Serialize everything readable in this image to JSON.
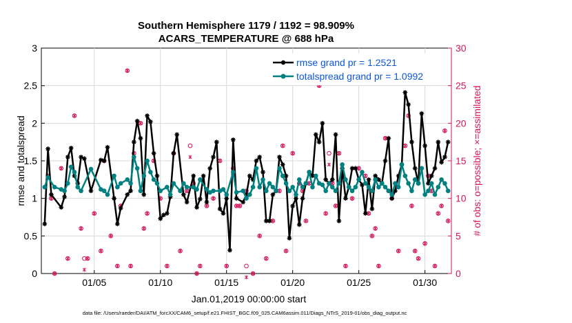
{
  "chart_data": {
    "type": "line",
    "title": [
      "Southern Hemisphere 1179 / 1192 = 98.909%",
      "ACARS_TEMPERATURE @ 688 hPa"
    ],
    "xlabel": "Jan.01,2019 00:00:00 start",
    "ylabel_left": "rmse and totalspread",
    "ylabel_right": "# of obs: o=possible; ×=assimilated",
    "footer": "data file: /Users/raeder/DAI/ATM_forcXX/CAM6_setup/f.e21.FHIST_BGC.f09_025.CAM6assim.011/Diags_NTrS_2019-01/obs_diag_output.nc",
    "xlim": [
      1,
      32
    ],
    "ylim_left": [
      0,
      3
    ],
    "ylim_right": [
      0,
      30
    ],
    "xticks": [
      5,
      10,
      15,
      20,
      25,
      30
    ],
    "xtick_labels": [
      "01/05",
      "01/10",
      "01/15",
      "01/20",
      "01/25",
      "01/30"
    ],
    "yticks_left": [
      0,
      0.5,
      1,
      1.5,
      2,
      2.5,
      3
    ],
    "ytick_labels_left": [
      "0",
      "0.5",
      "1",
      "1.5",
      "2",
      "2.5",
      "3"
    ],
    "yticks_right": [
      0,
      5,
      10,
      15,
      20,
      25,
      30
    ],
    "ytick_labels_right": [
      "0",
      "5",
      "10",
      "15",
      "20",
      "25",
      "30"
    ],
    "legend_placement": "top-right",
    "colors": {
      "rmse": "#000000",
      "spread": "#008080",
      "obs": "#d6135d",
      "legend_text": "#0b57d8"
    },
    "series": [
      {
        "name": "rmse grand pr = 1.2521",
        "marker": "asterisk",
        "points": [
          [
            1.25,
            0.66
          ],
          [
            1.5,
            1.66
          ],
          [
            1.75,
            1.05
          ],
          [
            2.5,
            0.88
          ],
          [
            2.75,
            1.02
          ],
          [
            3.0,
            1.55
          ],
          [
            3.25,
            1.67
          ],
          [
            3.5,
            1.3
          ],
          [
            3.75,
            1.2
          ],
          [
            4.0,
            1.55
          ],
          [
            4.25,
            1.53
          ],
          [
            4.75,
            1.1
          ],
          [
            5.5,
            1.51
          ],
          [
            5.75,
            1.5
          ],
          [
            6.0,
            1.68
          ],
          [
            6.5,
            1.0
          ],
          [
            6.75,
            0.66
          ],
          [
            7.0,
            0.87
          ],
          [
            7.5,
            1.05
          ],
          [
            7.75,
            1.1
          ],
          [
            8.0,
            1.75
          ],
          [
            8.25,
            2.03
          ],
          [
            8.5,
            1.8
          ],
          [
            8.75,
            1.05
          ],
          [
            9.0,
            2.1
          ],
          [
            9.25,
            2.02
          ],
          [
            9.5,
            1.6
          ],
          [
            9.75,
            1.3
          ],
          [
            10.0,
            0.73
          ],
          [
            10.25,
            0.78
          ],
          [
            10.5,
            0.8
          ],
          [
            10.75,
            1.02
          ],
          [
            11.0,
            1.6
          ],
          [
            11.25,
            1.85
          ],
          [
            11.75,
            1.05
          ],
          [
            12.0,
            0.95
          ],
          [
            12.5,
            1.3
          ],
          [
            12.75,
            0.88
          ],
          [
            13.0,
            0.99
          ],
          [
            13.25,
            1.3
          ],
          [
            13.5,
            0.95
          ],
          [
            13.75,
            1.4
          ],
          [
            14.0,
            1.55
          ],
          [
            14.25,
            1.75
          ],
          [
            14.5,
            0.86
          ],
          [
            14.75,
            0.8
          ],
          [
            15.0,
            1.0
          ],
          [
            15.25,
            0.31
          ],
          [
            15.5,
            1.78
          ],
          [
            15.75,
            1.0
          ],
          [
            16.25,
            0.95
          ],
          [
            16.5,
            1.05
          ],
          [
            16.75,
            1.3
          ],
          [
            17.0,
            1.25
          ],
          [
            17.25,
            1.5
          ],
          [
            17.5,
            1.55
          ],
          [
            17.75,
            1.35
          ],
          [
            18.0,
            0.7
          ],
          [
            18.25,
            0.7
          ],
          [
            18.5,
            1.05
          ],
          [
            18.75,
            1.1
          ],
          [
            19.0,
            1.55
          ],
          [
            19.25,
            1.45
          ],
          [
            19.5,
            1.3
          ],
          [
            19.75,
            0.47
          ],
          [
            20.0,
            0.9
          ],
          [
            20.25,
            1.0
          ],
          [
            20.5,
            0.65
          ],
          [
            20.75,
            1.0
          ],
          [
            21.0,
            1.2
          ],
          [
            21.25,
            1.35
          ],
          [
            21.5,
            1.3
          ],
          [
            21.75,
            1.85
          ],
          [
            22.0,
            1.75
          ],
          [
            22.25,
            2.0
          ],
          [
            22.5,
            1.25
          ],
          [
            22.75,
            1.2
          ],
          [
            23.0,
            1.25
          ],
          [
            23.25,
            1.85
          ],
          [
            23.5,
            0.7
          ],
          [
            23.75,
            1.4
          ],
          [
            24.0,
            1.0
          ],
          [
            24.25,
            1.15
          ],
          [
            24.5,
            1.4
          ],
          [
            24.75,
            1.4
          ],
          [
            25.0,
            1.25
          ],
          [
            25.25,
            1.18
          ],
          [
            25.5,
            0.8
          ],
          [
            25.75,
            1.25
          ],
          [
            26.0,
            0.86
          ],
          [
            26.25,
            1.3
          ],
          [
            26.5,
            1.25
          ],
          [
            26.75,
            1.2
          ],
          [
            27.0,
            1.5
          ],
          [
            27.25,
            1.8
          ],
          [
            27.5,
            1.0
          ],
          [
            27.75,
            1.1
          ],
          [
            28.0,
            1.3
          ],
          [
            28.25,
            1.45
          ],
          [
            28.5,
            2.41
          ],
          [
            28.75,
            2.25
          ],
          [
            29.0,
            1.75
          ],
          [
            29.25,
            1.4
          ],
          [
            29.5,
            1.2
          ],
          [
            29.75,
            2.13
          ],
          [
            30.0,
            1.7
          ],
          [
            30.25,
            1.2
          ],
          [
            30.5,
            1.3
          ],
          [
            30.75,
            1.4
          ],
          [
            31.0,
            1.75
          ],
          [
            31.25,
            1.48
          ],
          [
            31.5,
            1.55
          ],
          [
            31.75,
            1.75
          ]
        ]
      },
      {
        "name": "totalspread grand pr = 1.0992",
        "marker": "circle",
        "points": [
          [
            1.25,
            1.15
          ],
          [
            1.5,
            1.28
          ],
          [
            2.0,
            1.15
          ],
          [
            2.5,
            1.12
          ],
          [
            2.75,
            1.1
          ],
          [
            3.0,
            1.2
          ],
          [
            3.25,
            1.42
          ],
          [
            3.5,
            1.35
          ],
          [
            3.75,
            1.15
          ],
          [
            4.0,
            1.1
          ],
          [
            4.75,
            1.39
          ],
          [
            5.5,
            1.12
          ],
          [
            5.75,
            1.1
          ],
          [
            6.0,
            1.05
          ],
          [
            6.5,
            1.3
          ],
          [
            6.75,
            1.15
          ],
          [
            7.0,
            1.2
          ],
          [
            7.5,
            1.25
          ],
          [
            7.75,
            1.2
          ],
          [
            8.0,
            1.55
          ],
          [
            8.25,
            1.4
          ],
          [
            8.5,
            1.1
          ],
          [
            8.75,
            1.3
          ],
          [
            9.0,
            1.5
          ],
          [
            9.25,
            1.35
          ],
          [
            9.5,
            1.25
          ],
          [
            9.75,
            1.2
          ],
          [
            10.0,
            1.1
          ],
          [
            10.5,
            1.15
          ],
          [
            10.75,
            1.05
          ],
          [
            11.0,
            1.2
          ],
          [
            11.5,
            1.1
          ],
          [
            11.75,
            1.2
          ],
          [
            12.0,
            1.15
          ],
          [
            12.5,
            1.15
          ],
          [
            12.75,
            1.12
          ],
          [
            13.0,
            1.25
          ],
          [
            13.5,
            1.12
          ],
          [
            13.75,
            1.08
          ],
          [
            14.0,
            1.1
          ],
          [
            14.5,
            1.1
          ],
          [
            14.75,
            1.12
          ],
          [
            15.0,
            1.05
          ],
          [
            15.5,
            1.35
          ],
          [
            15.75,
            1.08
          ],
          [
            16.25,
            1.1
          ],
          [
            16.5,
            1.0
          ],
          [
            16.75,
            1.05
          ],
          [
            17.0,
            1.15
          ],
          [
            17.25,
            1.4
          ],
          [
            17.5,
            1.15
          ],
          [
            17.75,
            1.25
          ],
          [
            18.0,
            1.1
          ],
          [
            18.25,
            1.2
          ],
          [
            18.5,
            1.15
          ],
          [
            18.75,
            1.1
          ],
          [
            19.0,
            1.4
          ],
          [
            19.25,
            1.3
          ],
          [
            19.5,
            1.2
          ],
          [
            19.75,
            1.1
          ],
          [
            20.0,
            1.15
          ],
          [
            20.25,
            1.05
          ],
          [
            20.5,
            1.25
          ],
          [
            20.75,
            1.15
          ],
          [
            21.0,
            1.2
          ],
          [
            21.25,
            1.35
          ],
          [
            21.5,
            1.15
          ],
          [
            21.75,
            1.3
          ],
          [
            22.0,
            1.2
          ],
          [
            22.25,
            1.18
          ],
          [
            22.5,
            1.1
          ],
          [
            22.75,
            1.2
          ],
          [
            23.0,
            1.15
          ],
          [
            23.25,
            1.1
          ],
          [
            23.5,
            1.2
          ],
          [
            23.75,
            1.45
          ],
          [
            24.0,
            1.25
          ],
          [
            24.25,
            1.15
          ],
          [
            24.5,
            1.1
          ],
          [
            24.75,
            1.15
          ],
          [
            25.0,
            1.25
          ],
          [
            25.25,
            1.35
          ],
          [
            25.5,
            1.2
          ],
          [
            25.75,
            1.15
          ],
          [
            26.0,
            1.1
          ],
          [
            26.25,
            1.25
          ],
          [
            26.5,
            1.15
          ],
          [
            26.75,
            1.2
          ],
          [
            27.0,
            1.15
          ],
          [
            27.25,
            1.1
          ],
          [
            27.5,
            1.05
          ],
          [
            27.75,
            1.2
          ],
          [
            28.0,
            1.15
          ],
          [
            28.25,
            1.45
          ],
          [
            28.5,
            1.3
          ],
          [
            28.75,
            1.2
          ],
          [
            29.0,
            1.1
          ],
          [
            29.25,
            1.25
          ],
          [
            29.5,
            1.2
          ],
          [
            29.75,
            1.4
          ],
          [
            30.0,
            1.05
          ],
          [
            30.25,
            1.1
          ],
          [
            30.5,
            1.2
          ],
          [
            30.75,
            1.05
          ],
          [
            31.0,
            1.15
          ],
          [
            31.25,
            1.25
          ],
          [
            31.5,
            1.2
          ],
          [
            31.75,
            1.1
          ]
        ]
      }
    ],
    "obs_counts": [
      [
        1.5,
        13
      ],
      [
        1.75,
        10
      ],
      [
        2.0,
        0
      ],
      [
        2.5,
        14
      ],
      [
        3.0,
        2
      ],
      [
        3.5,
        21
      ],
      [
        4.0,
        6
      ],
      [
        4.5,
        2
      ],
      [
        5.0,
        8
      ],
      [
        5.5,
        3
      ],
      [
        5.75,
        15
      ],
      [
        6.25,
        5
      ],
      [
        6.75,
        1
      ],
      [
        7.0,
        9
      ],
      [
        7.5,
        27
      ],
      [
        7.75,
        1
      ],
      [
        8.0,
        16
      ],
      [
        8.5,
        20
      ],
      [
        8.75,
        6
      ],
      [
        9.0,
        8
      ],
      [
        9.5,
        15
      ],
      [
        10.0,
        10
      ],
      [
        10.5,
        1
      ],
      [
        11.0,
        16
      ],
      [
        11.5,
        3
      ],
      [
        12.0,
        11
      ],
      [
        12.5,
        12
      ],
      [
        12.75,
        0
      ],
      [
        13.0,
        1
      ],
      [
        13.5,
        9
      ],
      [
        14.0,
        10
      ],
      [
        14.5,
        15
      ],
      [
        15.0,
        1
      ],
      [
        15.5,
        14
      ],
      [
        15.75,
        9
      ],
      [
        16.0,
        9
      ],
      [
        16.5,
        11
      ],
      [
        17.0,
        0
      ],
      [
        17.5,
        5
      ],
      [
        18.0,
        2
      ],
      [
        18.5,
        7
      ],
      [
        19.0,
        11
      ],
      [
        19.25,
        17
      ],
      [
        19.5,
        3
      ],
      [
        20.0,
        16
      ],
      [
        20.5,
        12
      ],
      [
        20.75,
        11
      ],
      [
        21.0,
        7
      ],
      [
        21.25,
        12
      ],
      [
        22.0,
        25
      ],
      [
        22.5,
        8
      ],
      [
        23.0,
        12
      ],
      [
        23.25,
        9
      ],
      [
        23.5,
        16
      ],
      [
        24.0,
        1
      ],
      [
        24.5,
        10
      ],
      [
        25.0,
        14
      ],
      [
        25.5,
        13
      ],
      [
        25.75,
        8
      ],
      [
        26.0,
        5
      ],
      [
        26.25,
        6
      ],
      [
        26.5,
        1
      ],
      [
        27.0,
        18
      ],
      [
        27.25,
        11
      ],
      [
        27.5,
        10
      ],
      [
        28.0,
        3
      ],
      [
        28.5,
        17
      ],
      [
        28.75,
        21
      ],
      [
        29.0,
        9
      ],
      [
        29.25,
        3
      ],
      [
        29.5,
        2
      ],
      [
        29.75,
        14
      ],
      [
        30.0,
        4
      ],
      [
        30.25,
        13
      ],
      [
        30.5,
        11
      ],
      [
        30.75,
        1
      ],
      [
        31.0,
        8
      ],
      [
        31.25,
        9
      ],
      [
        31.5,
        19
      ],
      [
        31.75,
        7
      ]
    ],
    "obs_possible_only": [
      [
        4.25,
        2
      ],
      [
        12.25,
        17
      ],
      [
        16.5,
        1
      ],
      [
        22.75,
        16
      ]
    ]
  }
}
